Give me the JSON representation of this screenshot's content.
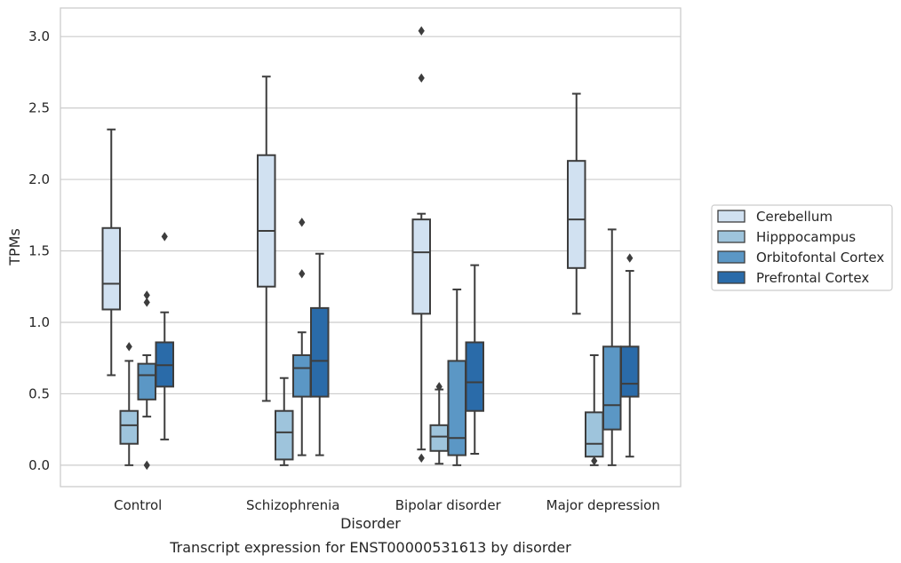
{
  "chart_data": {
    "type": "box",
    "caption": "Transcript expression for ENST00000531613 by disorder",
    "xlabel": "Disorder",
    "ylabel": "TPMs",
    "ylim": [
      -0.15,
      3.2
    ],
    "yticks": [
      0.0,
      0.5,
      1.0,
      1.5,
      2.0,
      2.5,
      3.0
    ],
    "ytick_labels": [
      "0.0",
      "0.5",
      "1.0",
      "1.5",
      "2.0",
      "2.5",
      "3.0"
    ],
    "grid": true,
    "legend_position": "right",
    "categories": [
      "Control",
      "Schizophrenia",
      "Bipolar disorder",
      "Major depression"
    ],
    "series": [
      {
        "name": "Cerebellum",
        "color": "#d1e1f1",
        "boxes": [
          {
            "q1": 1.09,
            "median": 1.27,
            "q3": 1.66,
            "whisker_low": 0.63,
            "whisker_high": 2.35,
            "outliers": []
          },
          {
            "q1": 1.25,
            "median": 1.64,
            "q3": 2.17,
            "whisker_low": 0.45,
            "whisker_high": 2.72,
            "outliers": []
          },
          {
            "q1": 1.06,
            "median": 1.49,
            "q3": 1.72,
            "whisker_low": 0.11,
            "whisker_high": 1.76,
            "outliers": [
              2.71,
              3.04,
              0.05
            ]
          },
          {
            "q1": 1.38,
            "median": 1.72,
            "q3": 2.13,
            "whisker_low": 1.06,
            "whisker_high": 2.6,
            "outliers": []
          }
        ]
      },
      {
        "name": "Hipppocampus",
        "color": "#9ec4dc",
        "boxes": [
          {
            "q1": 0.15,
            "median": 0.28,
            "q3": 0.38,
            "whisker_low": 0.0,
            "whisker_high": 0.73,
            "outliers": [
              0.83
            ]
          },
          {
            "q1": 0.04,
            "median": 0.23,
            "q3": 0.38,
            "whisker_low": 0.0,
            "whisker_high": 0.61,
            "outliers": []
          },
          {
            "q1": 0.1,
            "median": 0.2,
            "q3": 0.28,
            "whisker_low": 0.01,
            "whisker_high": 0.53,
            "outliers": [
              0.55
            ]
          },
          {
            "q1": 0.06,
            "median": 0.15,
            "q3": 0.37,
            "whisker_low": 0.0,
            "whisker_high": 0.77,
            "outliers": [
              0.03
            ]
          }
        ]
      },
      {
        "name": "Orbitofontal Cortex",
        "color": "#5b97c5",
        "boxes": [
          {
            "q1": 0.46,
            "median": 0.63,
            "q3": 0.71,
            "whisker_low": 0.34,
            "whisker_high": 0.77,
            "outliers": [
              1.14,
              1.19,
              0.0
            ]
          },
          {
            "q1": 0.48,
            "median": 0.68,
            "q3": 0.77,
            "whisker_low": 0.07,
            "whisker_high": 0.93,
            "outliers": [
              1.34,
              1.7
            ]
          },
          {
            "q1": 0.07,
            "median": 0.19,
            "q3": 0.73,
            "whisker_low": 0.0,
            "whisker_high": 1.23,
            "outliers": []
          },
          {
            "q1": 0.25,
            "median": 0.42,
            "q3": 0.83,
            "whisker_low": 0.0,
            "whisker_high": 1.65,
            "outliers": []
          }
        ]
      },
      {
        "name": "Prefrontal Cortex",
        "color": "#2a6ba9",
        "boxes": [
          {
            "q1": 0.55,
            "median": 0.7,
            "q3": 0.86,
            "whisker_low": 0.18,
            "whisker_high": 1.07,
            "outliers": [
              1.6
            ]
          },
          {
            "q1": 0.48,
            "median": 0.73,
            "q3": 1.1,
            "whisker_low": 0.07,
            "whisker_high": 1.48,
            "outliers": []
          },
          {
            "q1": 0.38,
            "median": 0.58,
            "q3": 0.86,
            "whisker_low": 0.08,
            "whisker_high": 1.4,
            "outliers": []
          },
          {
            "q1": 0.48,
            "median": 0.57,
            "q3": 0.83,
            "whisker_low": 0.06,
            "whisker_high": 1.36,
            "outliers": [
              1.45
            ]
          }
        ]
      }
    ]
  }
}
